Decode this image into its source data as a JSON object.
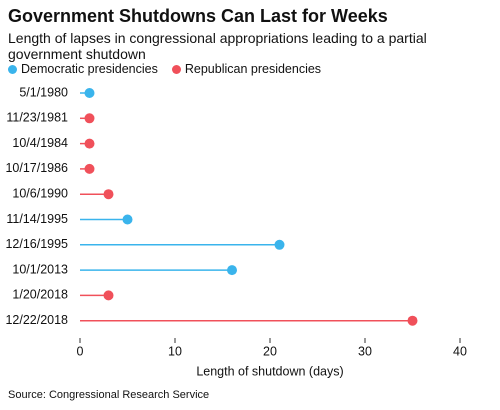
{
  "chart_data": {
    "type": "lollipop",
    "title": "Government Shutdowns Can Last for Weeks",
    "subtitle": "Length of lapses in congressional appropriations leading to a partial government shutdown",
    "categories": [
      "5/1/1980",
      "11/23/1981",
      "10/4/1984",
      "10/17/1986",
      "10/6/1990",
      "11/14/1995",
      "12/16/1995",
      "10/1/2013",
      "1/20/2018",
      "12/22/2018"
    ],
    "series": [
      {
        "name": "Democratic presidencies",
        "color": "#3ab4ec",
        "values": [
          1,
          null,
          null,
          null,
          null,
          5,
          21,
          16,
          null,
          null
        ]
      },
      {
        "name": "Republican presidencies",
        "color": "#f0505a",
        "values": [
          null,
          1,
          1,
          1,
          3,
          null,
          null,
          null,
          3,
          35
        ]
      }
    ],
    "xlim": [
      0,
      40
    ],
    "xticks": [
      0,
      10,
      20,
      30,
      40
    ],
    "xlabel": "Length of shutdown (days)",
    "source": "Source: Congressional Research Service"
  }
}
